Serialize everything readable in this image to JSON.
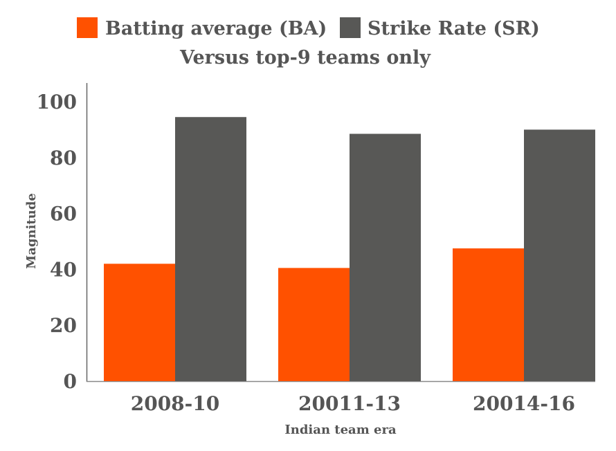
{
  "chart_data": {
    "type": "bar",
    "subtitle": "Versus top-9 teams only",
    "xlabel": "Indian team era",
    "ylabel": "Magnitude",
    "categories": [
      "2008-10",
      "20011-13",
      "20014-16"
    ],
    "series": [
      {
        "name": "Batting average (BA)",
        "color": "#ff5100",
        "values": [
          42,
          40.5,
          47.5
        ]
      },
      {
        "name": "Strike Rate (SR)",
        "color": "#585856",
        "values": [
          94.5,
          88.5,
          90
        ]
      }
    ],
    "yticks": [
      "0",
      "20",
      "40",
      "60",
      "80",
      "100"
    ],
    "ylim": [
      0,
      100
    ],
    "grid": false,
    "legend_position": "top"
  }
}
